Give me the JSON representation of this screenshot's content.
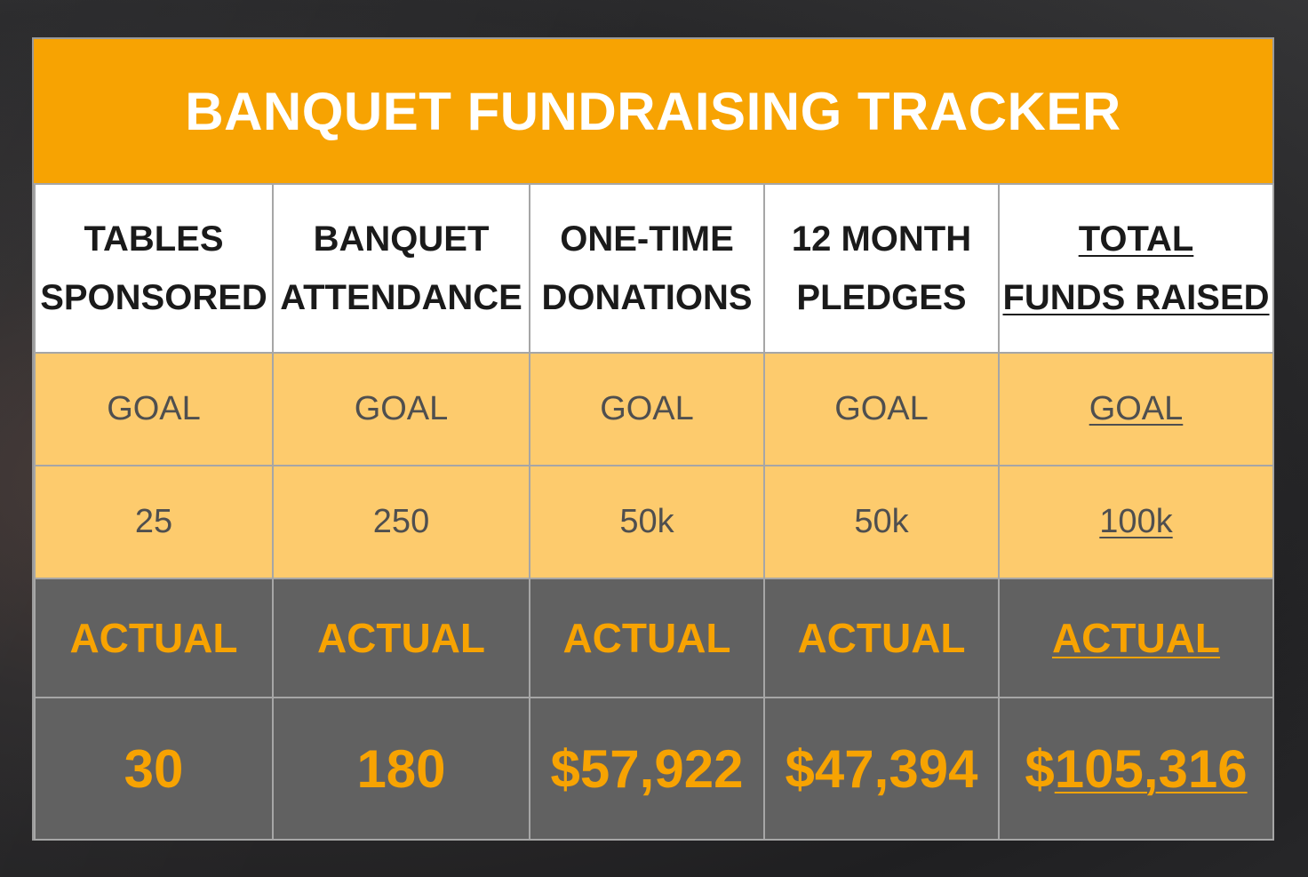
{
  "title": "BANQUET FUNDRAISING TRACKER",
  "columns": [
    {
      "header_line1": "TABLES",
      "header_line2": "SPONSORED",
      "goal_label": "GOAL",
      "goal_value": "25",
      "actual_label": "ACTUAL",
      "actual_value": "30",
      "underlined": false
    },
    {
      "header_line1": "BANQUET",
      "header_line2": "ATTENDANCE",
      "goal_label": "GOAL",
      "goal_value": "250",
      "actual_label": "ACTUAL",
      "actual_value": "180",
      "underlined": false
    },
    {
      "header_line1": "ONE-TIME",
      "header_line2": "DONATIONS",
      "goal_label": "GOAL",
      "goal_value": "50k",
      "actual_label": "ACTUAL",
      "actual_value": "$57,922",
      "underlined": false
    },
    {
      "header_line1": "12 MONTH",
      "header_line2": "PLEDGES",
      "goal_label": "GOAL",
      "goal_value": "50k",
      "actual_label": "ACTUAL",
      "actual_value": "$47,394",
      "underlined": false
    },
    {
      "header_line1": "TOTAL",
      "header_line2": "FUNDS RAISED",
      "goal_label": "GOAL",
      "goal_value": "100k",
      "actual_label": "ACTUAL",
      "actual_value_prefix": "$",
      "actual_value": "105,316",
      "underlined": true
    }
  ],
  "colors": {
    "accent_orange": "#f7a302",
    "goal_fill": "#fdcb6d",
    "actual_fill": "#616161",
    "header_fill": "#ffffff"
  }
}
